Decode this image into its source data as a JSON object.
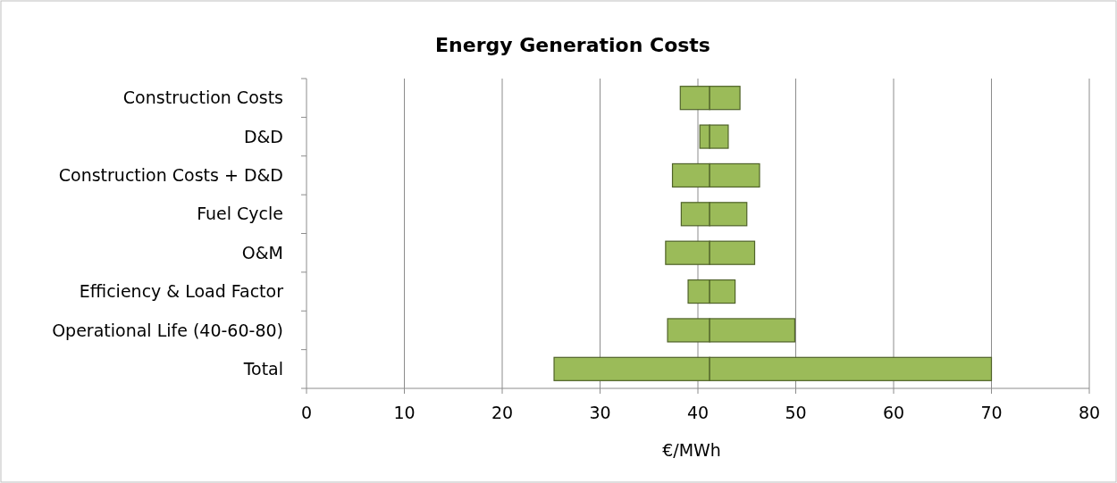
{
  "chart_data": {
    "type": "bar",
    "orientation": "horizontal",
    "title": "Energy Generation Costs",
    "xlabel": "€/MWh",
    "categories": [
      "Construction Costs",
      "D&D",
      "Construction Costs + D&D",
      "Fuel Cycle",
      "O&M",
      "Efficiency & Load Factor",
      "Operational Life (40-60-80)",
      "Total"
    ],
    "series": [
      {
        "color": "#9bbb59",
        "base": [
          38.2,
          40.2,
          37.4,
          38.3,
          36.7,
          39.0,
          36.9,
          25.3
        ],
        "values": [
          3.0,
          1.0,
          3.8,
          2.9,
          4.5,
          2.2,
          4.3,
          15.9
        ]
      },
      {
        "color": "#9bbb59",
        "base": [
          41.2,
          41.2,
          41.2,
          41.2,
          41.2,
          41.2,
          41.2,
          41.2
        ],
        "values": [
          3.1,
          1.9,
          5.1,
          3.8,
          4.6,
          2.6,
          8.7,
          28.8
        ]
      }
    ],
    "xlim": [
      0,
      80
    ],
    "xticks": [
      0,
      10,
      20,
      30,
      40,
      50,
      60,
      70,
      80
    ],
    "grid": "x"
  }
}
